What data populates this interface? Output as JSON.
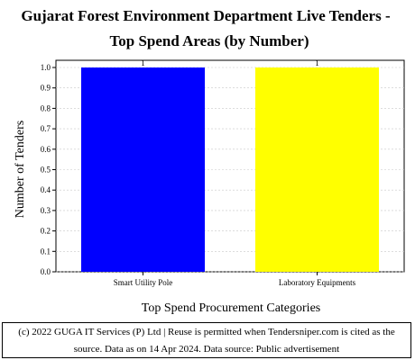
{
  "chart_data": {
    "type": "bar",
    "title_lines": [
      "Gujarat Forest Environment Department Live Tenders -",
      "Top Spend Areas (by Number)"
    ],
    "categories": [
      "Smart Utility Pole",
      "Laboratory Equipments"
    ],
    "values": [
      1,
      1
    ],
    "data_labels": [
      "1",
      "1"
    ],
    "bar_colors": [
      "#0000ff",
      "#ffff00"
    ],
    "xlabel": "Top Spend Procurement Categories",
    "ylabel": "Number of Tenders",
    "ylim": [
      0,
      1.0
    ],
    "yticks": [
      "0.0",
      "0.1",
      "0.2",
      "0.3",
      "0.4",
      "0.5",
      "0.6",
      "0.7",
      "0.8",
      "0.9",
      "1.0"
    ],
    "grid": true
  },
  "footer": {
    "line1": "(c) 2022 GUGA IT Services (P) Ltd | Reuse is permitted when Tendersniper.com is cited as the",
    "line2": "source. Data as on 14 Apr 2024. Data source: Public advertisement"
  }
}
